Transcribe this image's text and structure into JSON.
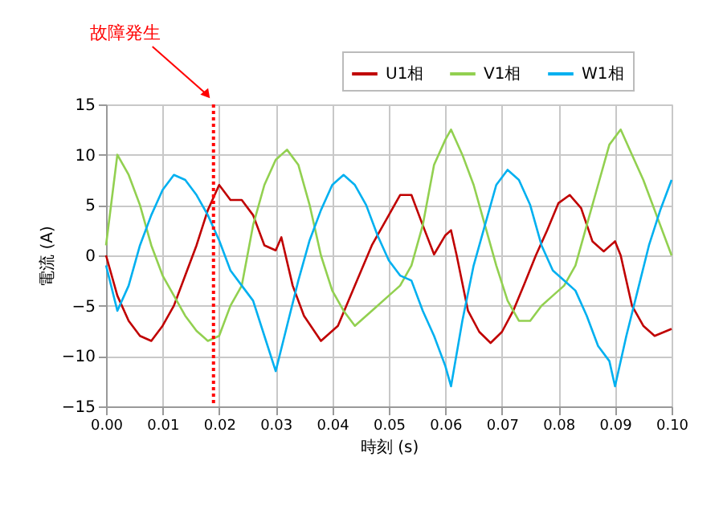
{
  "chart_data": {
    "type": "line",
    "xlabel": "時刻 (s)",
    "ylabel": "電流 (A)",
    "x": [
      0,
      0.002,
      0.004,
      0.006,
      0.008,
      0.01,
      0.012,
      0.014,
      0.016,
      0.018,
      0.02,
      0.022,
      0.024,
      0.026,
      0.028,
      0.03,
      0.031,
      0.033,
      0.035,
      0.038,
      0.041,
      0.044,
      0.047,
      0.05,
      0.052,
      0.054,
      0.056,
      0.058,
      0.06,
      0.061,
      0.062,
      0.064,
      0.066,
      0.068,
      0.07,
      0.072,
      0.074,
      0.076,
      0.078,
      0.08,
      0.082,
      0.084,
      0.086,
      0.088,
      0.09,
      0.091,
      0.093,
      0.095,
      0.097,
      0.1
    ],
    "series": [
      {
        "name": "U1相",
        "color": "#c00000",
        "values": [
          0,
          -4,
          -6.5,
          -8,
          -8.5,
          -7,
          -5,
          -2,
          1,
          4.5,
          7,
          5.5,
          5.5,
          4,
          1,
          0.5,
          1.8,
          -3,
          -6,
          -8.5,
          -7,
          -3,
          1,
          4,
          6,
          6,
          3,
          0.1,
          2,
          2.5,
          0,
          -5.5,
          -7.6,
          -8.7,
          -7.6,
          -5.5,
          -2.8,
          0,
          2.5,
          5.2,
          6,
          4.7,
          1.4,
          0.4,
          1.4,
          0,
          -5,
          -7,
          -8,
          -7.3
        ]
      },
      {
        "name": "V1相",
        "color": "#92d050",
        "x": [
          0,
          0.002,
          0.004,
          0.006,
          0.008,
          0.01,
          0.012,
          0.014,
          0.016,
          0.018,
          0.02,
          0.022,
          0.024,
          0.026,
          0.028,
          0.03,
          0.032,
          0.034,
          0.036,
          0.038,
          0.04,
          0.042,
          0.044,
          0.046,
          0.048,
          0.05,
          0.052,
          0.054,
          0.056,
          0.058,
          0.06,
          0.061,
          0.063,
          0.065,
          0.067,
          0.069,
          0.071,
          0.073,
          0.075,
          0.077,
          0.079,
          0.081,
          0.083,
          0.085,
          0.087,
          0.089,
          0.091,
          0.093,
          0.095,
          0.097,
          0.1
        ],
        "values": [
          1,
          10,
          8,
          5,
          1,
          -2,
          -4,
          -6,
          -7.5,
          -8.5,
          -8,
          -5,
          -3,
          3,
          7,
          9.5,
          10.5,
          9,
          5,
          0,
          -3.5,
          -5.5,
          -7,
          -6,
          -5,
          -4,
          -3,
          -1,
          3,
          9,
          11.5,
          12.5,
          10,
          7,
          3,
          -1,
          -4.5,
          -6.5,
          -6.5,
          -5,
          -4,
          -3,
          -1,
          3,
          7,
          11,
          12.5,
          10,
          7.5,
          4.5,
          0
        ]
      },
      {
        "name": "W1相",
        "color": "#00b0f0",
        "x": [
          0,
          0.002,
          0.004,
          0.006,
          0.008,
          0.01,
          0.012,
          0.014,
          0.016,
          0.018,
          0.02,
          0.022,
          0.024,
          0.026,
          0.028,
          0.03,
          0.032,
          0.034,
          0.036,
          0.038,
          0.04,
          0.042,
          0.044,
          0.046,
          0.048,
          0.05,
          0.052,
          0.054,
          0.056,
          0.058,
          0.06,
          0.061,
          0.063,
          0.065,
          0.067,
          0.069,
          0.071,
          0.073,
          0.075,
          0.077,
          0.079,
          0.081,
          0.083,
          0.085,
          0.087,
          0.089,
          0.09,
          0.092,
          0.094,
          0.096,
          0.098,
          0.1
        ],
        "values": [
          -1,
          -5.5,
          -3,
          1,
          4,
          6.5,
          8,
          7.5,
          6,
          4,
          1.5,
          -1.5,
          -3,
          -4.5,
          -8,
          -11.5,
          -7,
          -2.5,
          1.5,
          4.5,
          7,
          8,
          7,
          5,
          2,
          -0.5,
          -2,
          -2.5,
          -5.5,
          -8,
          -11,
          -13,
          -6.5,
          -1,
          3,
          7,
          8.5,
          7.5,
          5,
          1,
          -1.5,
          -2.5,
          -3.5,
          -6,
          -9,
          -10.5,
          -13,
          -8,
          -3.5,
          1,
          4.5,
          7.5
        ]
      }
    ],
    "xlim": [
      0,
      0.1
    ],
    "xticks": [
      {
        "value": 0,
        "label": "0.00"
      },
      {
        "value": 0.01,
        "label": "0.01"
      },
      {
        "value": 0.02,
        "label": "0.02"
      },
      {
        "value": 0.03,
        "label": "0.03"
      },
      {
        "value": 0.04,
        "label": "0.04"
      },
      {
        "value": 0.05,
        "label": "0.05"
      },
      {
        "value": 0.06,
        "label": "0.06"
      },
      {
        "value": 0.07,
        "label": "0.07"
      },
      {
        "value": 0.08,
        "label": "0.08"
      },
      {
        "value": 0.09,
        "label": "0.09"
      },
      {
        "value": 0.1,
        "label": "0.10"
      }
    ],
    "ylim": [
      -15,
      15
    ],
    "yticks": [
      -15,
      -10,
      -5,
      0,
      5,
      10,
      15
    ],
    "ref_lines": [
      {
        "axis": "x",
        "value": 0.019,
        "label": "故障発生",
        "color": "#ff0000",
        "line_style": "dotted"
      }
    ],
    "grid": true,
    "legend": "top right",
    "line_style": "solid",
    "marker": "none"
  }
}
